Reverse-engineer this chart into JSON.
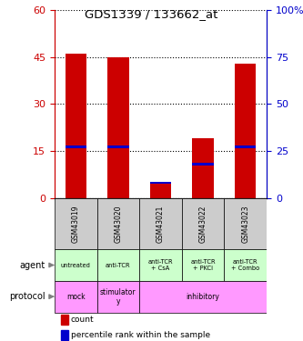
{
  "title": "GDS1339 / 133662_at",
  "samples": [
    "GSM43019",
    "GSM43020",
    "GSM43021",
    "GSM43022",
    "GSM43023"
  ],
  "count_values": [
    46,
    45,
    5,
    19,
    43
  ],
  "percentile_values": [
    27,
    27,
    8,
    18,
    27
  ],
  "left_ylim": [
    0,
    60
  ],
  "left_yticks": [
    0,
    15,
    30,
    45,
    60
  ],
  "right_ylim": [
    0,
    100
  ],
  "right_yticks": [
    0,
    25,
    50,
    75,
    100
  ],
  "left_ycolor": "#cc0000",
  "right_ycolor": "#0000cc",
  "bar_color_count": "#cc0000",
  "bar_color_percentile": "#0000cc",
  "agent_labels": [
    "untreated",
    "anti-TCR",
    "anti-TCR\n+ CsA",
    "anti-TCR\n+ PKCi",
    "anti-TCR\n+ Combo"
  ],
  "agent_color": "#ccffcc",
  "protocol_info": [
    [
      0,
      0,
      "mock"
    ],
    [
      1,
      1,
      "stimulator\ny"
    ],
    [
      2,
      4,
      "inhibitory"
    ]
  ],
  "protocol_color": "#ff99ff",
  "sample_bg_color": "#cccccc",
  "legend_count_label": "count",
  "legend_pct_label": "percentile rank within the sample"
}
